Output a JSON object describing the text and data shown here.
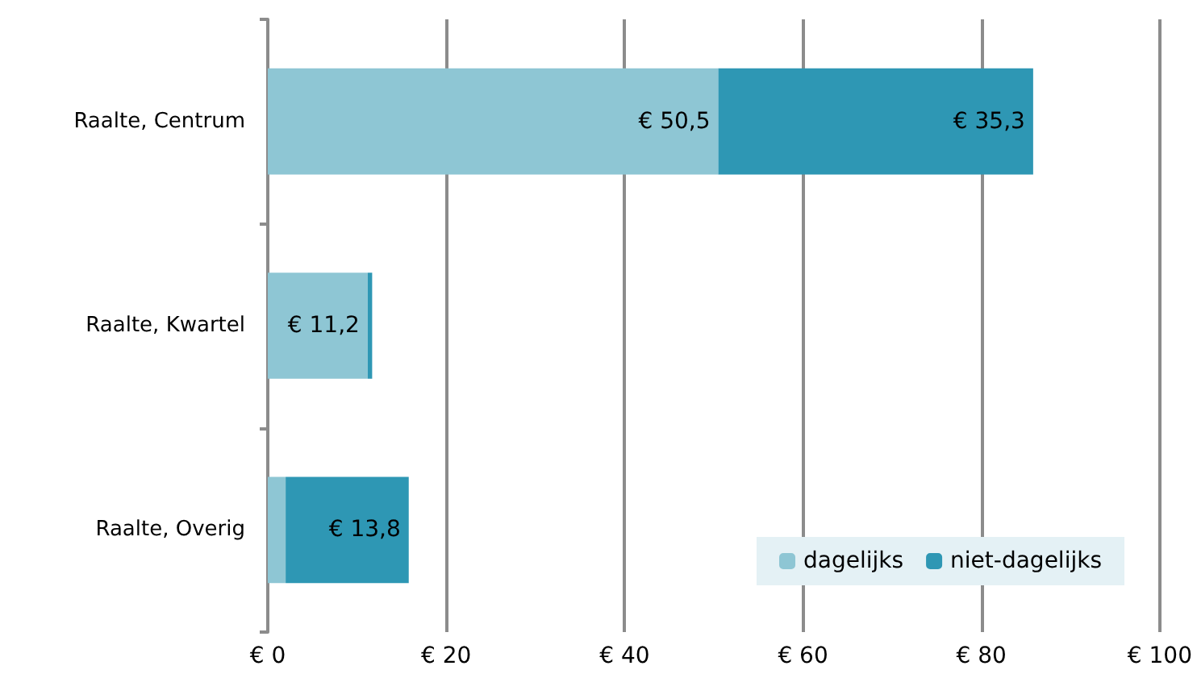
{
  "chart_data": {
    "type": "bar",
    "orientation": "horizontal",
    "stacked": true,
    "categories": [
      "Raalte, Centrum",
      "Raalte, Kwartel",
      "Raalte, Overig"
    ],
    "series": [
      {
        "name": "dagelijks",
        "color": "#8ec6d4",
        "values": [
          50.5,
          11.2,
          2.0
        ],
        "value_labels": [
          "€ 50,5",
          "€ 11,2",
          null
        ]
      },
      {
        "name": "niet-dagelijks",
        "color": "#2e97b4",
        "values": [
          35.3,
          0.5,
          13.8
        ],
        "value_labels": [
          "€ 35,3",
          null,
          "€ 13,8"
        ]
      }
    ],
    "xlim": [
      0,
      100
    ],
    "xticks": [
      {
        "value": 0,
        "label": "€ 0"
      },
      {
        "value": 20,
        "label": "€ 20"
      },
      {
        "value": 40,
        "label": "€ 40"
      },
      {
        "value": 60,
        "label": "€ 60"
      },
      {
        "value": 80,
        "label": "€ 80"
      },
      {
        "value": 100,
        "label": "€ 100"
      }
    ],
    "grid": "x",
    "legend": "bottom right"
  }
}
